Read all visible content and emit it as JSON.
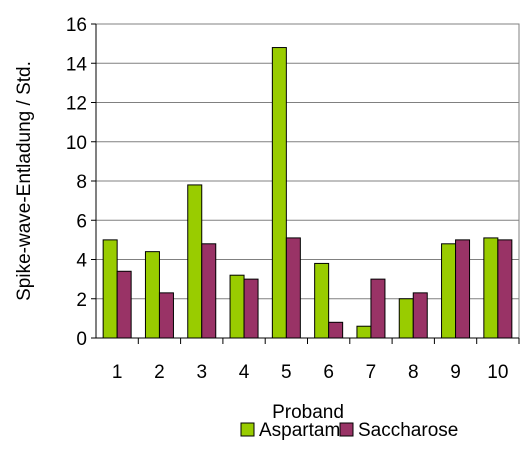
{
  "chart_data": {
    "type": "bar",
    "categories": [
      "1",
      "2",
      "3",
      "4",
      "5",
      "6",
      "7",
      "8",
      "9",
      "10"
    ],
    "series": [
      {
        "name": "Aspartam",
        "color": "#99cc00",
        "values": [
          5.0,
          4.4,
          7.8,
          3.2,
          14.8,
          3.8,
          0.6,
          2.0,
          4.8,
          5.1
        ]
      },
      {
        "name": "Saccharose",
        "color": "#993366",
        "values": [
          3.4,
          2.3,
          4.8,
          3.0,
          5.1,
          0.8,
          3.0,
          2.3,
          5.0,
          5.0
        ]
      }
    ],
    "title": "",
    "xlabel": "Proband",
    "ylabel": "Spike-wave-Entladung / Std.",
    "ylim": [
      0,
      16
    ],
    "yticks": [
      "0",
      "2",
      "4",
      "6",
      "8",
      "10",
      "12",
      "14",
      "16"
    ],
    "grid": true,
    "legend": "bottom"
  }
}
